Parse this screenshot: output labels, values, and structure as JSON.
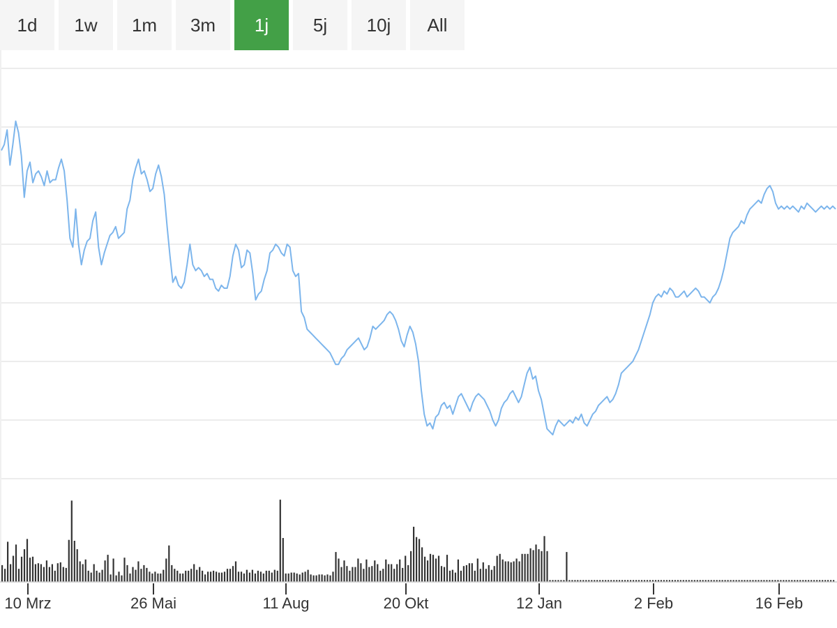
{
  "range_buttons": [
    {
      "label": "1d",
      "active": false
    },
    {
      "label": "1w",
      "active": false
    },
    {
      "label": "1m",
      "active": false
    },
    {
      "label": "3m",
      "active": false
    },
    {
      "label": "1j",
      "active": true
    },
    {
      "label": "5j",
      "active": false
    },
    {
      "label": "10j",
      "active": false
    },
    {
      "label": "All",
      "active": false
    }
  ],
  "colors": {
    "accent": "#43a047",
    "line": "#7cb5ec",
    "volume": "#333333",
    "grid": "#e6e6e6",
    "button_bg": "#f5f5f5"
  },
  "chart_data": {
    "type": "line",
    "title": "",
    "xlabel": "",
    "ylabel": "",
    "grid": true,
    "x_tick_labels": [
      "10 Mrz",
      "26 Mai",
      "11 Aug",
      "20 Okt",
      "12 Jan",
      "2 Feb",
      "16 Feb"
    ],
    "y_values_note_free": true,
    "series": [
      {
        "values": [
          0.72,
          0.74,
          0.79,
          0.67,
          0.74,
          0.82,
          0.78,
          0.7,
          0.56,
          0.65,
          0.68,
          0.61,
          0.64,
          0.65,
          0.63,
          0.6,
          0.65,
          0.61,
          0.62,
          0.62,
          0.66,
          0.69,
          0.65,
          0.55,
          0.42,
          0.39,
          0.52,
          0.4,
          0.33,
          0.38,
          0.41,
          0.42,
          0.48,
          0.51,
          0.39,
          0.33,
          0.37,
          0.4,
          0.43,
          0.44,
          0.46,
          0.42,
          0.43,
          0.44,
          0.52,
          0.55,
          0.62,
          0.66,
          0.69,
          0.64,
          0.65,
          0.62,
          0.58,
          0.59,
          0.64,
          0.67,
          0.63,
          0.57,
          0.46,
          0.36,
          0.27,
          0.29,
          0.26,
          0.25,
          0.27,
          0.33,
          0.4,
          0.33,
          0.31,
          0.32,
          0.31,
          0.29,
          0.3,
          0.28,
          0.28,
          0.25,
          0.24,
          0.26,
          0.25,
          0.25,
          0.29,
          0.36,
          0.4,
          0.38,
          0.32,
          0.33,
          0.38,
          0.37,
          0.3,
          0.21,
          0.23,
          0.24,
          0.28,
          0.31,
          0.37,
          0.38,
          0.4,
          0.39,
          0.37,
          0.36,
          0.4,
          0.39,
          0.31,
          0.29,
          0.3,
          0.17,
          0.15,
          0.11,
          0.1,
          0.09,
          0.08,
          0.07,
          0.06,
          0.05,
          0.04,
          0.03,
          0.01,
          -0.01,
          -0.01,
          0.01,
          0.02,
          0.04,
          0.05,
          0.06,
          0.07,
          0.08,
          0.06,
          0.04,
          0.05,
          0.08,
          0.12,
          0.11,
          0.12,
          0.13,
          0.14,
          0.16,
          0.17,
          0.16,
          0.14,
          0.11,
          0.07,
          0.05,
          0.09,
          0.12,
          0.1,
          0.06,
          0.0,
          -0.1,
          -0.18,
          -0.22,
          -0.21,
          -0.23,
          -0.19,
          -0.18,
          -0.15,
          -0.14,
          -0.16,
          -0.15,
          -0.18,
          -0.15,
          -0.12,
          -0.11,
          -0.13,
          -0.15,
          -0.17,
          -0.14,
          -0.12,
          -0.11,
          -0.12,
          -0.13,
          -0.15,
          -0.17,
          -0.2,
          -0.22,
          -0.2,
          -0.16,
          -0.14,
          -0.13,
          -0.11,
          -0.1,
          -0.12,
          -0.14,
          -0.12,
          -0.08,
          -0.04,
          -0.02,
          -0.06,
          -0.05,
          -0.1,
          -0.13,
          -0.18,
          -0.23,
          -0.24,
          -0.25,
          -0.22,
          -0.2,
          -0.21,
          -0.22,
          -0.21,
          -0.2,
          -0.21,
          -0.19,
          -0.2,
          -0.18,
          -0.21,
          -0.22,
          -0.2,
          -0.18,
          -0.17,
          -0.15,
          -0.14,
          -0.13,
          -0.12,
          -0.14,
          -0.13,
          -0.11,
          -0.08,
          -0.04,
          -0.03,
          -0.02,
          -0.01,
          0.0,
          0.02,
          0.04,
          0.07,
          0.1,
          0.13,
          0.16,
          0.2,
          0.22,
          0.23,
          0.22,
          0.24,
          0.23,
          0.25,
          0.24,
          0.22,
          0.22,
          0.23,
          0.24,
          0.22,
          0.23,
          0.24,
          0.25,
          0.24,
          0.22,
          0.22,
          0.21,
          0.2,
          0.22,
          0.23,
          0.25,
          0.28,
          0.32,
          0.37,
          0.42,
          0.44,
          0.45,
          0.46,
          0.48,
          0.47,
          0.5,
          0.52,
          0.53,
          0.54,
          0.55,
          0.54,
          0.57,
          0.59,
          0.6,
          0.58,
          0.54,
          0.52,
          0.53,
          0.52,
          0.53,
          0.52,
          0.53,
          0.52,
          0.51,
          0.53,
          0.52,
          0.54,
          0.53,
          0.52,
          0.51,
          0.52,
          0.53,
          0.52,
          0.53,
          0.52,
          0.53,
          0.52
        ]
      },
      {
        "values": [
          0.18,
          0.14,
          0.43,
          0.19,
          0.28,
          0.4,
          0.14,
          0.27,
          0.35,
          0.46,
          0.26,
          0.27,
          0.19,
          0.2,
          0.19,
          0.16,
          0.23,
          0.16,
          0.19,
          0.12,
          0.2,
          0.21,
          0.16,
          0.15,
          0.45,
          0.87,
          0.44,
          0.35,
          0.22,
          0.19,
          0.24,
          0.12,
          0.1,
          0.19,
          0.12,
          0.1,
          0.13,
          0.23,
          0.29,
          0.08,
          0.25,
          0.07,
          0.11,
          0.07,
          0.26,
          0.18,
          0.09,
          0.16,
          0.13,
          0.22,
          0.14,
          0.18,
          0.15,
          0.11,
          0.09,
          0.11,
          0.09,
          0.09,
          0.13,
          0.25,
          0.39,
          0.18,
          0.14,
          0.12,
          0.09,
          0.09,
          0.12,
          0.12,
          0.14,
          0.19,
          0.13,
          0.16,
          0.12,
          0.08,
          0.11,
          0.11,
          0.12,
          0.11,
          0.1,
          0.1,
          0.11,
          0.14,
          0.14,
          0.17,
          0.22,
          0.11,
          0.11,
          0.09,
          0.13,
          0.1,
          0.13,
          0.09,
          0.12,
          0.11,
          0.09,
          0.12,
          0.12,
          0.1,
          0.13,
          0.12,
          0.88,
          0.47,
          0.09,
          0.09,
          0.1,
          0.1,
          0.09,
          0.08,
          0.1,
          0.11,
          0.13,
          0.08,
          0.07,
          0.07,
          0.08,
          0.08,
          0.07,
          0.08,
          0.07,
          0.11,
          0.32,
          0.25,
          0.16,
          0.23,
          0.17,
          0.12,
          0.16,
          0.16,
          0.25,
          0.2,
          0.14,
          0.24,
          0.16,
          0.17,
          0.23,
          0.19,
          0.12,
          0.14,
          0.24,
          0.19,
          0.19,
          0.14,
          0.19,
          0.24,
          0.15,
          0.28,
          0.18,
          0.33,
          0.59,
          0.48,
          0.46,
          0.37,
          0.27,
          0.23,
          0.3,
          0.29,
          0.25,
          0.28,
          0.17,
          0.16,
          0.29,
          0.12,
          0.13,
          0.1,
          0.24,
          0.12,
          0.17,
          0.18,
          0.2,
          0.2,
          0.12,
          0.25,
          0.14,
          0.21,
          0.14,
          0.18,
          0.13,
          0.17,
          0.28,
          0.3,
          0.24,
          0.22,
          0.22,
          0.21,
          0.22,
          0.25,
          0.22,
          0.3,
          0.3,
          0.3,
          0.36,
          0.34,
          0.4,
          0.35,
          0.33,
          0.49,
          0.33,
          0.02,
          0.02,
          0.02,
          0.02,
          0.02,
          0.02,
          0.32,
          0.02,
          0.02,
          0.02,
          0.02,
          0.02,
          0.02,
          0.02,
          0.02,
          0.02,
          0.02,
          0.02,
          0.02,
          0.02,
          0.02,
          0.02,
          0.02,
          0.02,
          0.02,
          0.02,
          0.02,
          0.02,
          0.02,
          0.02,
          0.02,
          0.02,
          0.02,
          0.02,
          0.02,
          0.02,
          0.02,
          0.02,
          0.02,
          0.02,
          0.02,
          0.02,
          0.02,
          0.02,
          0.02,
          0.02,
          0.02,
          0.02,
          0.02,
          0.02,
          0.02,
          0.02,
          0.02,
          0.02,
          0.02,
          0.02,
          0.02,
          0.02,
          0.02,
          0.02,
          0.02,
          0.02,
          0.02,
          0.02,
          0.02,
          0.02,
          0.02,
          0.02,
          0.02,
          0.02,
          0.02,
          0.02,
          0.02,
          0.02,
          0.02,
          0.02,
          0.02,
          0.02,
          0.02,
          0.02,
          0.02,
          0.02,
          0.02,
          0.02,
          0.02,
          0.02,
          0.02,
          0.02,
          0.02,
          0.02,
          0.02,
          0.02,
          0.02,
          0.02,
          0.02,
          0.02,
          0.02,
          0.02,
          0.02,
          0.02,
          0.02,
          0.02,
          0.02
        ]
      }
    ]
  }
}
